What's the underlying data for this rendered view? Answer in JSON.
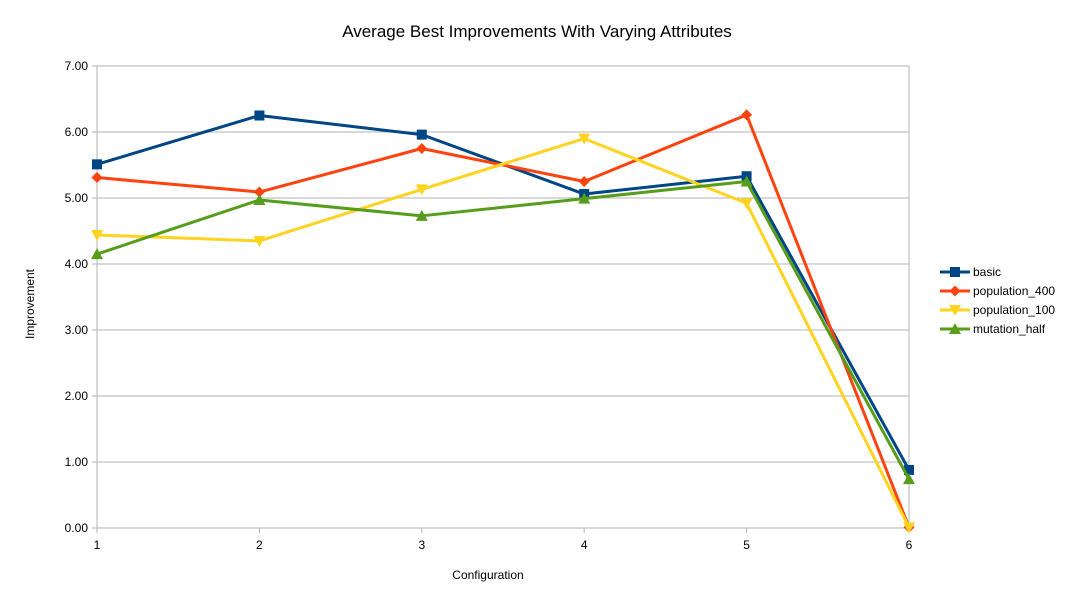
{
  "chart_data": {
    "type": "line",
    "title": "Average Best Improvements With Varying Attributes",
    "xlabel": "Configuration",
    "ylabel": "Improvement",
    "x": [
      1,
      2,
      3,
      4,
      5,
      6
    ],
    "x_tick_labels": [
      "1",
      "2",
      "3",
      "4",
      "5",
      "6"
    ],
    "ylim": [
      0,
      7
    ],
    "y_tick_labels": [
      "0.00",
      "1.00",
      "2.00",
      "3.00",
      "4.00",
      "5.00",
      "6.00",
      "7.00"
    ],
    "grid": "horizontal",
    "legend_position": "right",
    "series": [
      {
        "name": "basic",
        "color": "#004586",
        "marker": "square",
        "values": [
          5.51,
          6.25,
          5.96,
          5.06,
          5.33,
          0.88
        ]
      },
      {
        "name": "population_400",
        "color": "#ff420e",
        "marker": "diamond",
        "values": [
          5.31,
          5.09,
          5.75,
          5.25,
          6.26,
          0.01
        ]
      },
      {
        "name": "population_100",
        "color": "#ffd320",
        "marker": "triangle-down",
        "values": [
          4.44,
          4.35,
          5.13,
          5.9,
          4.92,
          0.01
        ]
      },
      {
        "name": "mutation_half",
        "color": "#579d1c",
        "marker": "triangle-up",
        "values": [
          4.15,
          4.97,
          4.73,
          4.99,
          5.25,
          0.74
        ]
      }
    ]
  }
}
